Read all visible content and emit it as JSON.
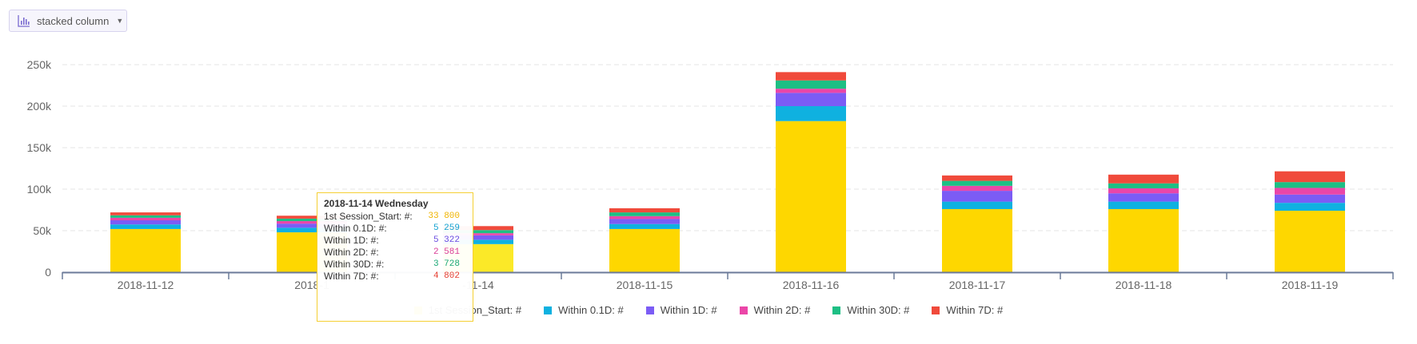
{
  "toolbar": {
    "chart_type_label": "stacked column",
    "icon": "bar-chart-icon",
    "caret_icon": "chevron-down-icon"
  },
  "chart_data": {
    "type": "bar",
    "stacked": true,
    "categories": [
      "2018-11-12",
      "2018-11-13",
      "2018-11-14",
      "2018-11-15",
      "2018-11-16",
      "2018-11-17",
      "2018-11-18",
      "2018-11-19"
    ],
    "category_labels": [
      "2018-11-12",
      "2018-1",
      "-11-14",
      "2018-11-15",
      "2018-11-16",
      "2018-11-17",
      "2018-11-18",
      "2018-11-19"
    ],
    "ylim": [
      0,
      250000
    ],
    "yticks": [
      0,
      50000,
      100000,
      150000,
      200000,
      250000
    ],
    "ytick_labels": [
      "0",
      "50k",
      "100k",
      "150k",
      "200k",
      "250k"
    ],
    "grid": true,
    "legend_position": "bottom",
    "highlighted_category": "2018-11-14",
    "series": [
      {
        "name": "1st Session_Start: #",
        "color": "#fed700",
        "values": [
          52000,
          48000,
          33800,
          52000,
          182000,
          76000,
          76000,
          74000
        ]
      },
      {
        "name": "Within 0.1D: #",
        "color": "#0fb1e0",
        "values": [
          5500,
          5500,
          5259,
          6000,
          18000,
          9000,
          9000,
          9500
        ]
      },
      {
        "name": "Within 1D: #",
        "color": "#7b5cf5",
        "values": [
          5000,
          5000,
          5322,
          6000,
          16000,
          13000,
          10000,
          10000
        ]
      },
      {
        "name": "Within 2D: #",
        "color": "#eb46a8",
        "values": [
          3000,
          3000,
          2581,
          3500,
          5000,
          6000,
          6000,
          8000
        ]
      },
      {
        "name": "Within 30D: #",
        "color": "#1dbf84",
        "values": [
          3000,
          3000,
          3728,
          4500,
          10000,
          6000,
          6000,
          7000
        ]
      },
      {
        "name": "Within 7D: #",
        "color": "#f04a3b",
        "values": [
          3500,
          3500,
          4802,
          5000,
          10000,
          6500,
          10500,
          13000
        ]
      }
    ]
  },
  "tooltip": {
    "title": "2018-11-14 Wednesday",
    "rows": [
      {
        "label": "1st Session_Start: #:",
        "value": "33 800",
        "color": "#f0b400"
      },
      {
        "label": "Within 0.1D: #:",
        "value": "5 259",
        "color": "#0fa0d0"
      },
      {
        "label": "Within 1D: #:",
        "value": "5 322",
        "color": "#6a4ce0"
      },
      {
        "label": "Within 2D: #:",
        "value": "2 581",
        "color": "#d93b96"
      },
      {
        "label": "Within 30D: #:",
        "value": "3 728",
        "color": "#18a774"
      },
      {
        "label": "Within 7D: #:",
        "value": "4 802",
        "color": "#e53d2f"
      }
    ]
  }
}
